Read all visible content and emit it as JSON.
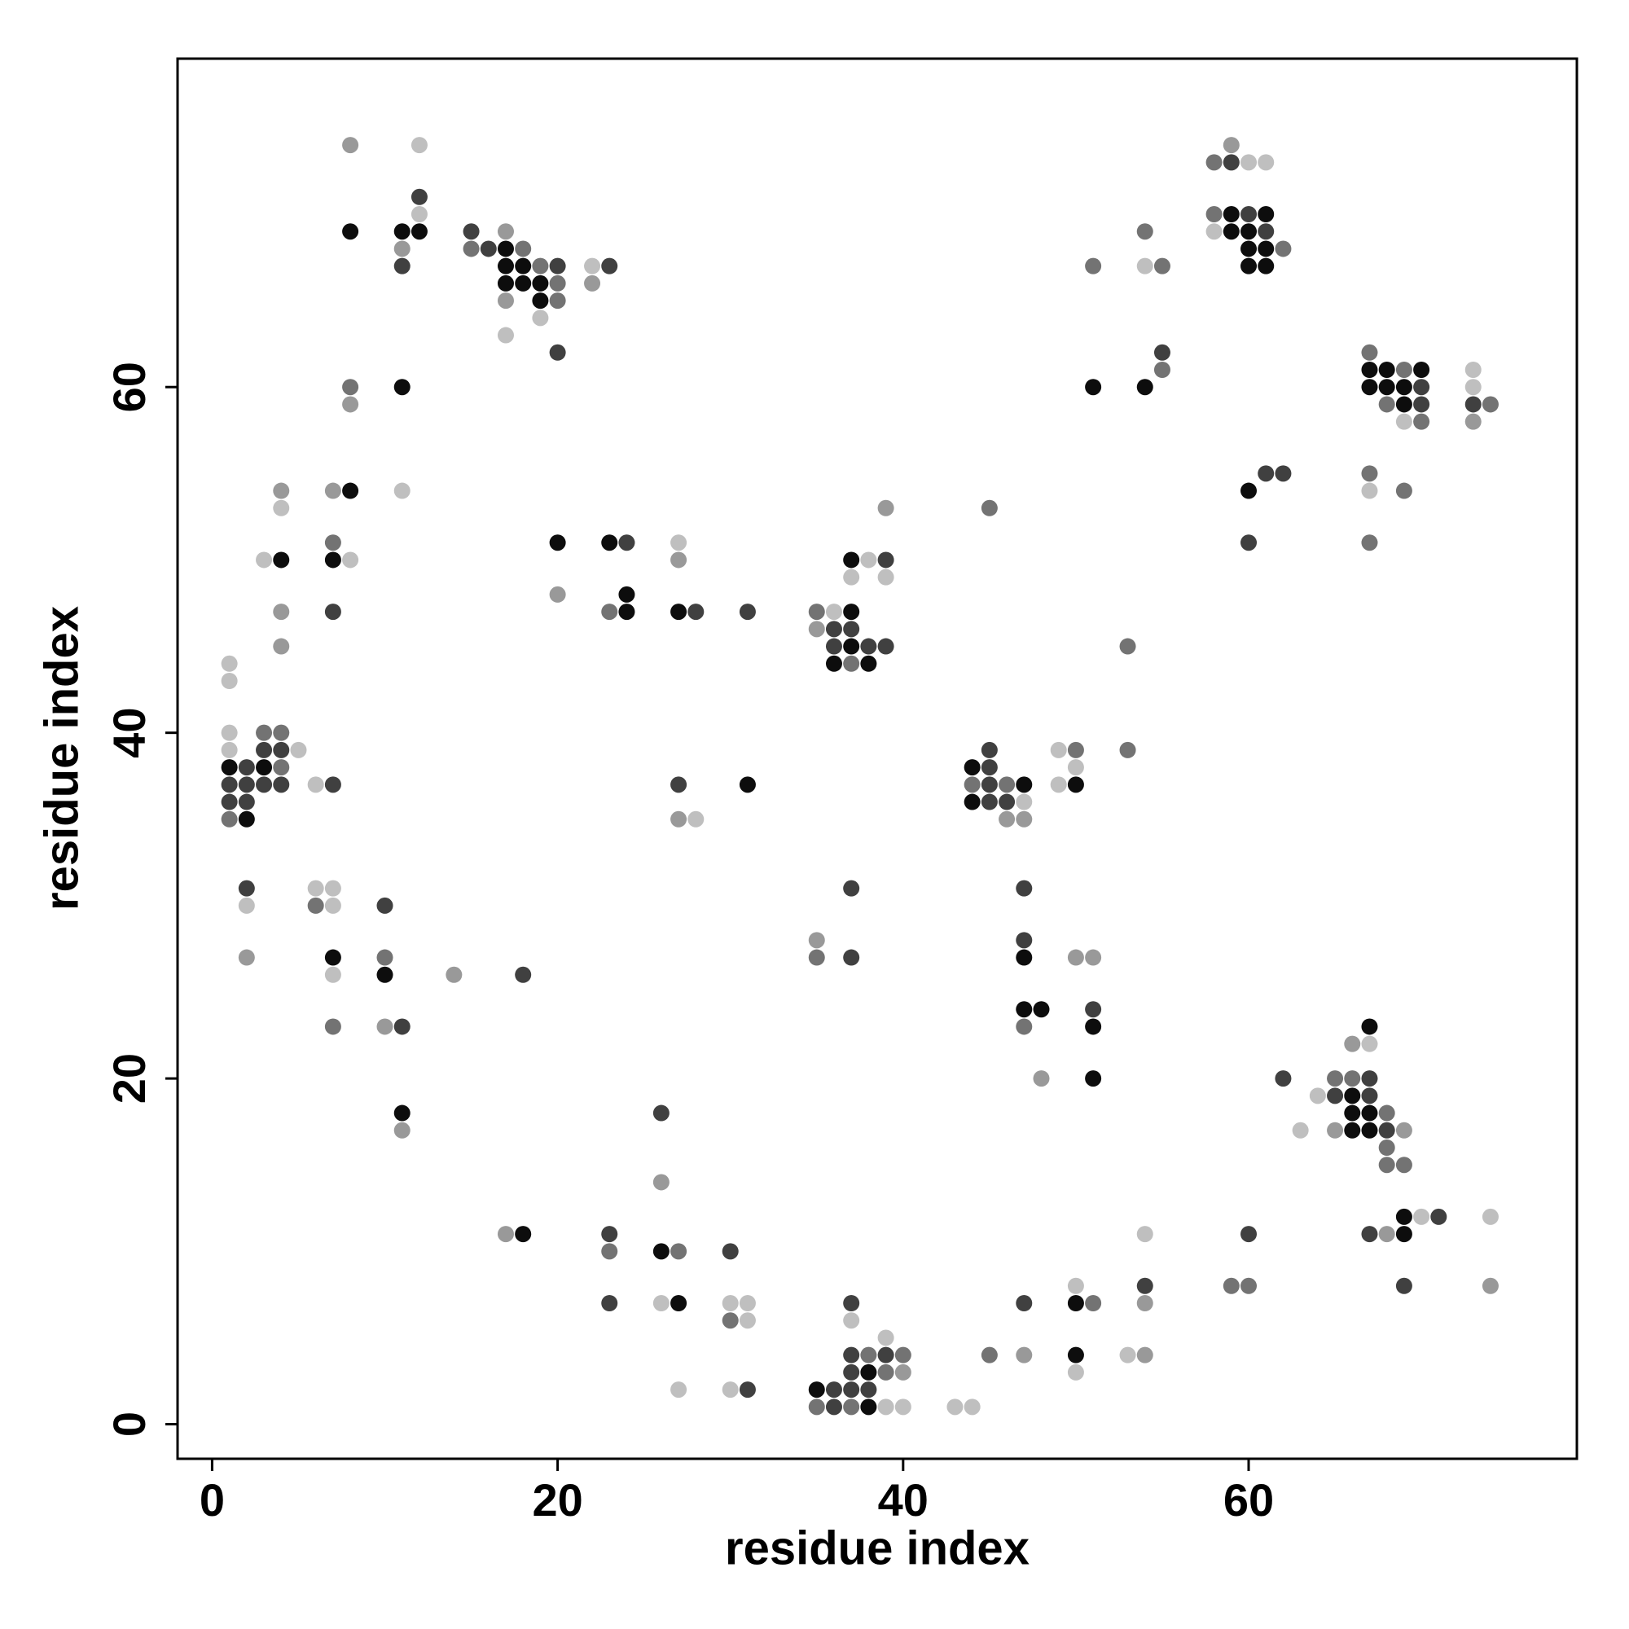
{
  "chart_data": {
    "type": "scatter",
    "xlabel": "residue index",
    "ylabel": "residue index",
    "xlim": [
      -2,
      79
    ],
    "ylim": [
      -2,
      79
    ],
    "xticks": [
      0,
      20,
      40,
      60
    ],
    "yticks": [
      0,
      20,
      40,
      60
    ],
    "grid": false,
    "series": [
      {
        "color": "#0d0d0d",
        "x": [
          12,
          11,
          8,
          17,
          17,
          18,
          17,
          18,
          19,
          19,
          8,
          4,
          7,
          1,
          3,
          2,
          7,
          10,
          11,
          20,
          23,
          24,
          24,
          27,
          31,
          37,
          37,
          36,
          38,
          37,
          44,
          47,
          44,
          50,
          47,
          47,
          48,
          51,
          51,
          51,
          54,
          59,
          61,
          59,
          60,
          60,
          61,
          60,
          61,
          60,
          67,
          68,
          70,
          67,
          68,
          69,
          69,
          66,
          66,
          67,
          66,
          67,
          67,
          69,
          69,
          50,
          50,
          35,
          38,
          38,
          18,
          26,
          27,
          11
        ],
        "y": [
          69,
          69,
          69,
          68,
          67,
          67,
          66,
          66,
          66,
          65,
          54,
          50,
          50,
          38,
          38,
          35,
          27,
          26,
          18,
          51,
          51,
          48,
          47,
          47,
          37,
          47,
          45,
          44,
          44,
          50,
          38,
          37,
          36,
          37,
          27,
          24,
          24,
          23,
          20,
          60,
          60,
          70,
          70,
          69,
          69,
          68,
          68,
          67,
          67,
          54,
          61,
          61,
          61,
          60,
          60,
          60,
          59,
          19,
          18,
          18,
          17,
          17,
          23,
          11,
          12,
          7,
          4,
          2,
          1,
          3,
          11,
          10,
          7,
          60
        ]
      },
      {
        "color": "#404040",
        "x": [
          12,
          11,
          15,
          16,
          20,
          20,
          23,
          7,
          3,
          4,
          2,
          1,
          2,
          3,
          4,
          7,
          1,
          2,
          2,
          10,
          11,
          18,
          24,
          28,
          31,
          27,
          36,
          37,
          36,
          38,
          39,
          39,
          37,
          37,
          45,
          45,
          45,
          45,
          46,
          47,
          47,
          51,
          55,
          60,
          61,
          59,
          61,
          62,
          60,
          70,
          70,
          73,
          62,
          67,
          65,
          67,
          68,
          67,
          71,
          69,
          60,
          54,
          47,
          36,
          37,
          38,
          36,
          37,
          39,
          37,
          37,
          23,
          23,
          26,
          30,
          31
        ],
        "y": [
          71,
          67,
          69,
          68,
          67,
          62,
          67,
          47,
          39,
          39,
          38,
          37,
          37,
          37,
          37,
          37,
          36,
          36,
          31,
          30,
          23,
          26,
          51,
          47,
          47,
          37,
          46,
          46,
          45,
          45,
          45,
          50,
          31,
          27,
          38,
          39,
          37,
          36,
          36,
          31,
          28,
          24,
          62,
          70,
          69,
          73,
          55,
          55,
          51,
          60,
          59,
          59,
          20,
          20,
          19,
          19,
          17,
          11,
          12,
          8,
          11,
          8,
          7,
          2,
          2,
          2,
          1,
          4,
          4,
          3,
          7,
          11,
          7,
          18,
          10,
          2
        ]
      },
      {
        "color": "#737373",
        "x": [
          15,
          18,
          19,
          20,
          20,
          8,
          7,
          3,
          4,
          4,
          1,
          6,
          7,
          10,
          23,
          35,
          37,
          35,
          45,
          44,
          46,
          50,
          53,
          53,
          47,
          51,
          54,
          55,
          55,
          58,
          62,
          58,
          67,
          69,
          68,
          70,
          74,
          67,
          69,
          67,
          65,
          66,
          68,
          68,
          68,
          69,
          59,
          60,
          51,
          45,
          35,
          37,
          38,
          40,
          39,
          23,
          27,
          30
        ],
        "y": [
          68,
          68,
          67,
          66,
          65,
          60,
          51,
          40,
          40,
          38,
          35,
          30,
          23,
          27,
          47,
          47,
          44,
          27,
          53,
          37,
          37,
          39,
          45,
          39,
          23,
          67,
          69,
          67,
          61,
          70,
          68,
          73,
          62,
          61,
          59,
          58,
          59,
          55,
          54,
          51,
          20,
          20,
          18,
          16,
          15,
          15,
          8,
          8,
          7,
          4,
          1,
          1,
          4,
          4,
          3,
          10,
          10,
          6
        ]
      },
      {
        "color": "#999999",
        "x": [
          8,
          11,
          17,
          17,
          22,
          8,
          4,
          7,
          4,
          4,
          2,
          10,
          14,
          11,
          20,
          27,
          27,
          35,
          39,
          35,
          46,
          47,
          48,
          50,
          51,
          59,
          73,
          65,
          69,
          66,
          68,
          74,
          54,
          47,
          54,
          40,
          17,
          26
        ],
        "y": [
          74,
          68,
          69,
          65,
          66,
          59,
          54,
          54,
          47,
          45,
          27,
          23,
          26,
          17,
          48,
          50,
          35,
          46,
          53,
          28,
          35,
          35,
          20,
          27,
          27,
          74,
          58,
          17,
          17,
          22,
          11,
          8,
          7,
          4,
          4,
          3,
          11,
          14
        ]
      },
      {
        "color": "#bfbfbf",
        "x": [
          12,
          12,
          19,
          17,
          22,
          11,
          4,
          3,
          8,
          1,
          1,
          1,
          1,
          5,
          6,
          2,
          6,
          7,
          7,
          7,
          27,
          28,
          36,
          38,
          37,
          39,
          47,
          49,
          50,
          49,
          54,
          58,
          60,
          61,
          69,
          73,
          73,
          67,
          63,
          64,
          67,
          70,
          74,
          54,
          50,
          50,
          53,
          43,
          44,
          39,
          39,
          40,
          37,
          26,
          27,
          30,
          31,
          31,
          30
        ],
        "y": [
          74,
          70,
          64,
          63,
          67,
          54,
          53,
          50,
          50,
          44,
          43,
          40,
          39,
          39,
          37,
          30,
          31,
          31,
          30,
          26,
          51,
          35,
          47,
          50,
          49,
          49,
          36,
          39,
          38,
          37,
          67,
          69,
          73,
          73,
          58,
          61,
          60,
          54,
          17,
          19,
          22,
          12,
          12,
          11,
          8,
          3,
          4,
          1,
          1,
          5,
          1,
          1,
          6,
          7,
          2,
          7,
          7,
          6,
          2
        ]
      }
    ]
  }
}
